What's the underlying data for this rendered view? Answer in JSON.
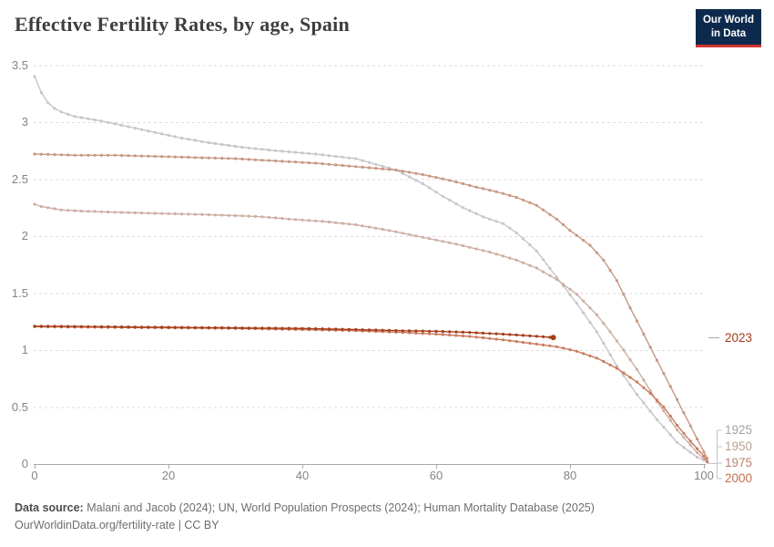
{
  "header": {
    "title": "Effective Fertility Rates, by age, Spain"
  },
  "logo": {
    "line1": "Our World",
    "line2": "in Data",
    "bg_color": "#0d2a4d",
    "accent_color": "#cf3530"
  },
  "chart_data": {
    "type": "line",
    "title": "Effective Fertility Rates, by age, Spain",
    "xlabel": "",
    "ylabel": "",
    "x_ticks": [
      0,
      20,
      40,
      60,
      80,
      100
    ],
    "y_ticks": [
      0,
      0.5,
      1,
      1.5,
      2,
      2.5,
      3,
      3.5
    ],
    "xlim": [
      0,
      101
    ],
    "ylim": [
      0,
      3.5
    ],
    "grid": true,
    "legend_position": "right-end-labels",
    "marker_step_years": 1,
    "series": [
      {
        "name": "1925",
        "color": "#c6c6cb",
        "label_color": "#a3a3a3",
        "has_end_dot": false,
        "points": [
          [
            0,
            3.4
          ],
          [
            1,
            3.26
          ],
          [
            2,
            3.17
          ],
          [
            3,
            3.12
          ],
          [
            4,
            3.09
          ],
          [
            6,
            3.05
          ],
          [
            8,
            3.03
          ],
          [
            10,
            3.01
          ],
          [
            14,
            2.96
          ],
          [
            18,
            2.91
          ],
          [
            22,
            2.86
          ],
          [
            26,
            2.82
          ],
          [
            31,
            2.78
          ],
          [
            36,
            2.75
          ],
          [
            42,
            2.72
          ],
          [
            48,
            2.68
          ],
          [
            54,
            2.58
          ],
          [
            58,
            2.46
          ],
          [
            61,
            2.35
          ],
          [
            64,
            2.25
          ],
          [
            67,
            2.17
          ],
          [
            70,
            2.11
          ],
          [
            72,
            2.03
          ],
          [
            75,
            1.87
          ],
          [
            78,
            1.64
          ],
          [
            81,
            1.41
          ],
          [
            84,
            1.16
          ],
          [
            87,
            0.86
          ],
          [
            90,
            0.61
          ],
          [
            93,
            0.39
          ],
          [
            96,
            0.19
          ],
          [
            99,
            0.06
          ],
          [
            100.5,
            0.02
          ]
        ]
      },
      {
        "name": "1950",
        "color": "#cdafa4",
        "label_color": "#bca194",
        "has_end_dot": false,
        "points": [
          [
            0,
            2.28
          ],
          [
            1,
            2.26
          ],
          [
            2,
            2.25
          ],
          [
            4,
            2.23
          ],
          [
            7,
            2.22
          ],
          [
            12,
            2.21
          ],
          [
            18,
            2.2
          ],
          [
            25,
            2.19
          ],
          [
            30,
            2.18
          ],
          [
            34,
            2.17
          ],
          [
            38,
            2.15
          ],
          [
            43,
            2.13
          ],
          [
            48,
            2.1
          ],
          [
            53,
            2.05
          ],
          [
            58,
            1.99
          ],
          [
            63,
            1.93
          ],
          [
            68,
            1.86
          ],
          [
            72,
            1.79
          ],
          [
            75,
            1.72
          ],
          [
            78,
            1.62
          ],
          [
            81,
            1.49
          ],
          [
            84,
            1.31
          ],
          [
            86,
            1.16
          ],
          [
            88,
            1.0
          ],
          [
            90,
            0.83
          ],
          [
            93,
            0.55
          ],
          [
            96,
            0.3
          ],
          [
            99,
            0.1
          ],
          [
            100.5,
            0.02
          ]
        ]
      },
      {
        "name": "1975",
        "color": "#c79884",
        "label_color": "#bb8570",
        "has_end_dot": false,
        "points": [
          [
            0,
            2.72
          ],
          [
            6,
            2.71
          ],
          [
            12,
            2.71
          ],
          [
            18,
            2.7
          ],
          [
            24,
            2.69
          ],
          [
            30,
            2.68
          ],
          [
            36,
            2.66
          ],
          [
            42,
            2.64
          ],
          [
            48,
            2.61
          ],
          [
            54,
            2.58
          ],
          [
            58,
            2.54
          ],
          [
            62,
            2.49
          ],
          [
            66,
            2.43
          ],
          [
            69,
            2.39
          ],
          [
            72,
            2.34
          ],
          [
            75,
            2.27
          ],
          [
            78,
            2.15
          ],
          [
            80,
            2.05
          ],
          [
            83,
            1.92
          ],
          [
            85,
            1.79
          ],
          [
            87,
            1.61
          ],
          [
            89,
            1.37
          ],
          [
            91,
            1.14
          ],
          [
            93,
            0.91
          ],
          [
            95,
            0.68
          ],
          [
            97,
            0.45
          ],
          [
            99,
            0.22
          ],
          [
            100.5,
            0.05
          ]
        ]
      },
      {
        "name": "2000",
        "color": "#ca7c60",
        "label_color": "#c26e4f",
        "has_end_dot": false,
        "points": [
          [
            0,
            1.205
          ],
          [
            10,
            1.2
          ],
          [
            20,
            1.195
          ],
          [
            30,
            1.19
          ],
          [
            40,
            1.18
          ],
          [
            48,
            1.17
          ],
          [
            55,
            1.155
          ],
          [
            60,
            1.14
          ],
          [
            65,
            1.12
          ],
          [
            70,
            1.09
          ],
          [
            74,
            1.06
          ],
          [
            78,
            1.03
          ],
          [
            81,
            0.99
          ],
          [
            84,
            0.93
          ],
          [
            87,
            0.84
          ],
          [
            90,
            0.72
          ],
          [
            92,
            0.62
          ],
          [
            94,
            0.5
          ],
          [
            96,
            0.34
          ],
          [
            98,
            0.2
          ],
          [
            100,
            0.07
          ],
          [
            100.5,
            0.02
          ]
        ]
      },
      {
        "name": "2023",
        "color": "#a63d1b",
        "label_color": "#9e3a1a",
        "has_end_dot": true,
        "points": [
          [
            0,
            1.21
          ],
          [
            10,
            1.205
          ],
          [
            20,
            1.2
          ],
          [
            30,
            1.195
          ],
          [
            40,
            1.19
          ],
          [
            48,
            1.18
          ],
          [
            55,
            1.17
          ],
          [
            60,
            1.165
          ],
          [
            65,
            1.155
          ],
          [
            70,
            1.14
          ],
          [
            74,
            1.125
          ],
          [
            77.5,
            1.11
          ]
        ]
      }
    ]
  },
  "footer": {
    "source_label": "Data source:",
    "source_text": " Malani and Jacob (2024); UN, World Population Prospects (2024); Human Mortality Database (2025)",
    "citation": "OurWorldinData.org/fertility-rate | CC BY"
  }
}
